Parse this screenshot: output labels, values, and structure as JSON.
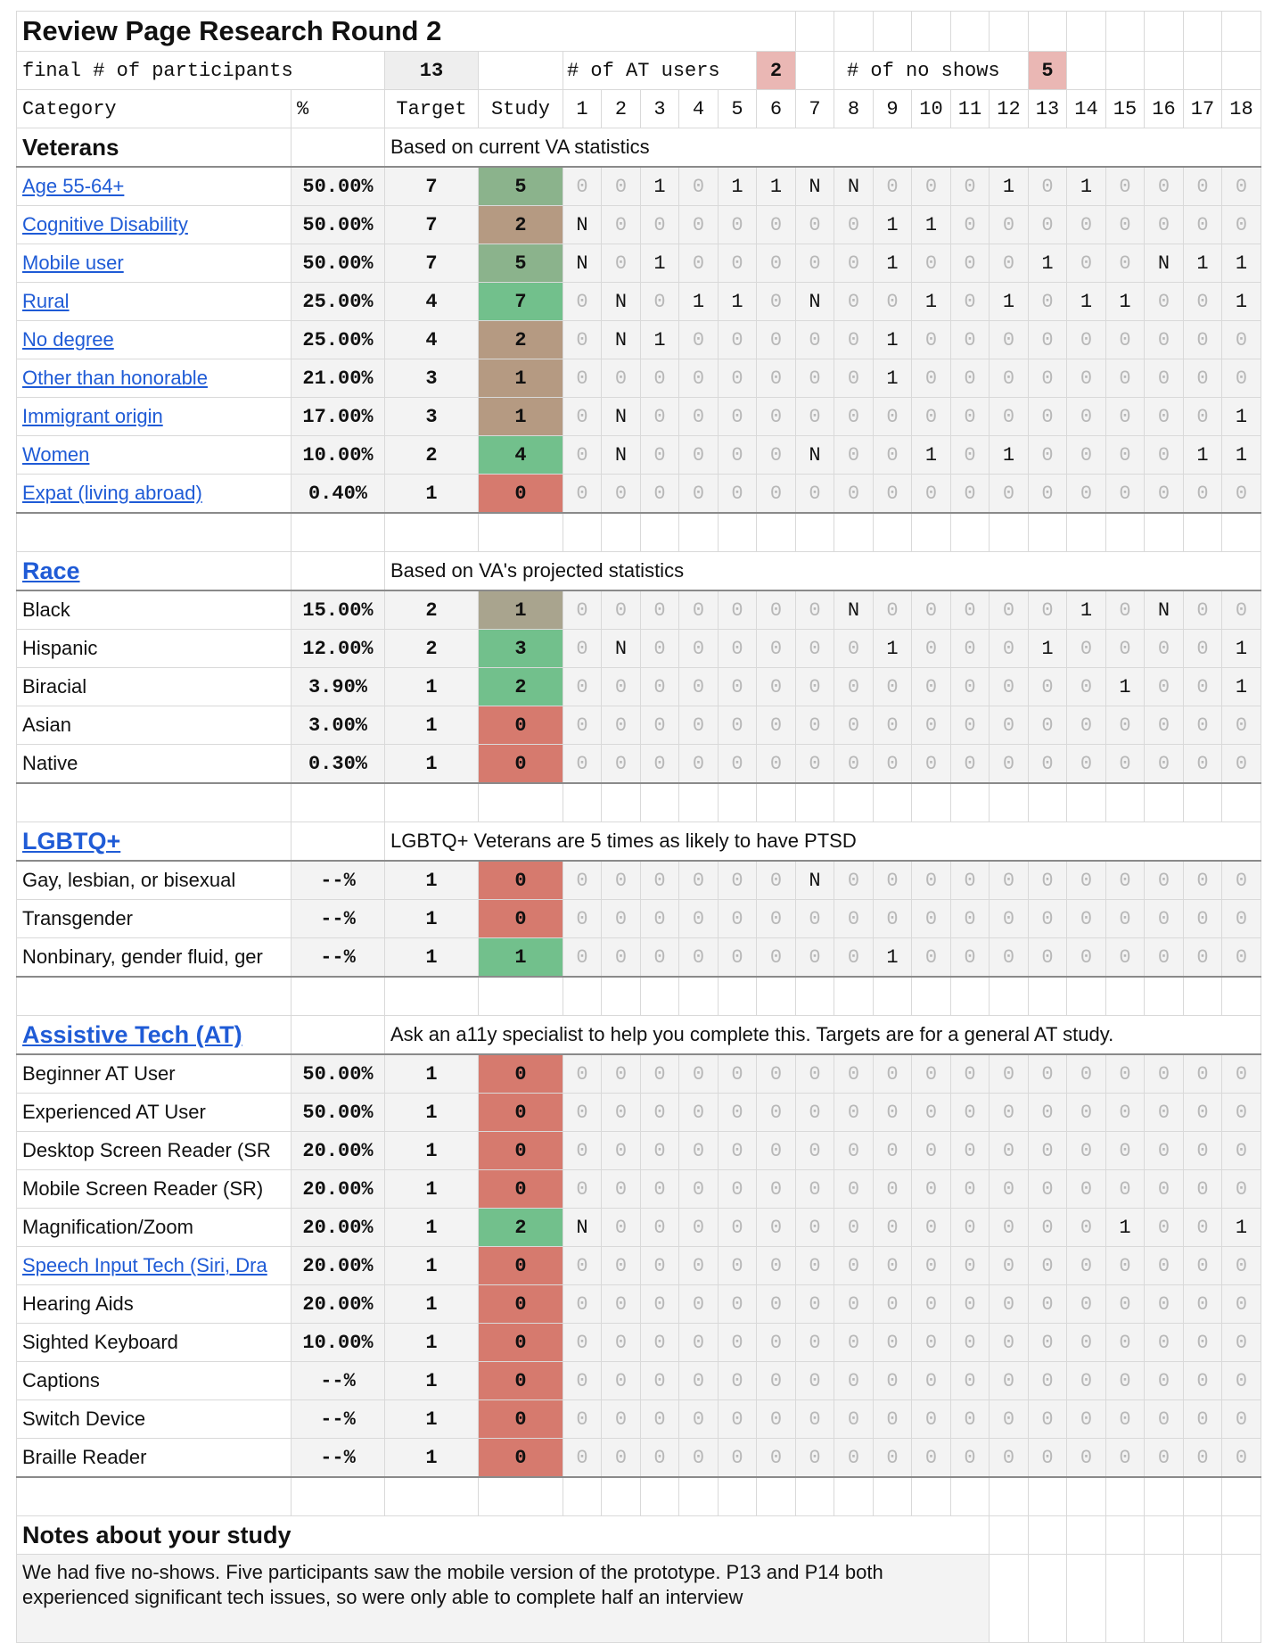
{
  "title": "Review Page Research Round 2",
  "summary": {
    "final_label": "final # of participants",
    "final_value": "13",
    "at_label": "# of AT users",
    "at_value": "2",
    "noshow_label": "# of no shows",
    "noshow_value": "5"
  },
  "headers": {
    "category": "Category",
    "pct": "%",
    "target": "Target",
    "study": "Study",
    "participants": [
      "1",
      "2",
      "3",
      "4",
      "5",
      "6",
      "7",
      "8",
      "9",
      "10",
      "11",
      "12",
      "13",
      "14",
      "15",
      "16",
      "17",
      "18"
    ]
  },
  "colors": {
    "red": "#d67a6e",
    "green": "#72c08c",
    "olive_green": "#8bb38c",
    "brown": "#b59a82",
    "khaki": "#a9a48e",
    "pink_badge": "#eab7b4",
    "link": "#1f5bd6"
  },
  "sections": [
    {
      "name": "Veterans",
      "is_link": false,
      "note": "Based on current VA statistics",
      "rows": [
        {
          "label": "Age 55-64+",
          "link": true,
          "pct": "50.00%",
          "target": "7",
          "study": "5",
          "color": "olive_green",
          "cells": [
            "0",
            "0",
            "1",
            "0",
            "1",
            "1",
            "N",
            "N",
            "0",
            "0",
            "0",
            "1",
            "0",
            "1",
            "0",
            "0",
            "0",
            "0"
          ]
        },
        {
          "label": "Cognitive Disability",
          "link": true,
          "pct": "50.00%",
          "target": "7",
          "study": "2",
          "color": "brown",
          "cells": [
            "N",
            "0",
            "0",
            "0",
            "0",
            "0",
            "0",
            "0",
            "1",
            "1",
            "0",
            "0",
            "0",
            "0",
            "0",
            "0",
            "0",
            "0"
          ]
        },
        {
          "label": "Mobile user",
          "link": true,
          "pct": "50.00%",
          "target": "7",
          "study": "5",
          "color": "olive_green",
          "cells": [
            "N",
            "0",
            "1",
            "0",
            "0",
            "0",
            "0",
            "0",
            "1",
            "0",
            "0",
            "0",
            "1",
            "0",
            "0",
            "N",
            "1",
            "1"
          ]
        },
        {
          "label": "Rural",
          "link": true,
          "pct": "25.00%",
          "target": "4",
          "study": "7",
          "color": "green",
          "cells": [
            "0",
            "N",
            "0",
            "1",
            "1",
            "0",
            "N",
            "0",
            "0",
            "1",
            "0",
            "1",
            "0",
            "1",
            "1",
            "0",
            "0",
            "1"
          ]
        },
        {
          "label": "No degree",
          "link": true,
          "pct": "25.00%",
          "target": "4",
          "study": "2",
          "color": "brown",
          "cells": [
            "0",
            "N",
            "1",
            "0",
            "0",
            "0",
            "0",
            "0",
            "1",
            "0",
            "0",
            "0",
            "0",
            "0",
            "0",
            "0",
            "0",
            "0"
          ]
        },
        {
          "label": "Other than honorable",
          "link": true,
          "pct": "21.00%",
          "target": "3",
          "study": "1",
          "color": "brown",
          "cells": [
            "0",
            "0",
            "0",
            "0",
            "0",
            "0",
            "0",
            "0",
            "1",
            "0",
            "0",
            "0",
            "0",
            "0",
            "0",
            "0",
            "0",
            "0"
          ]
        },
        {
          "label": "Immigrant origin",
          "link": true,
          "pct": "17.00%",
          "target": "3",
          "study": "1",
          "color": "brown",
          "cells": [
            "0",
            "N",
            "0",
            "0",
            "0",
            "0",
            "0",
            "0",
            "0",
            "0",
            "0",
            "0",
            "0",
            "0",
            "0",
            "0",
            "0",
            "1"
          ]
        },
        {
          "label": "Women",
          "link": true,
          "pct": "10.00%",
          "target": "2",
          "study": "4",
          "color": "green",
          "cells": [
            "0",
            "N",
            "0",
            "0",
            "0",
            "0",
            "N",
            "0",
            "0",
            "1",
            "0",
            "1",
            "0",
            "0",
            "0",
            "0",
            "1",
            "1"
          ]
        },
        {
          "label": "Expat (living abroad)",
          "link": true,
          "pct": "0.40%",
          "target": "1",
          "study": "0",
          "color": "red",
          "cells": [
            "0",
            "0",
            "0",
            "0",
            "0",
            "0",
            "0",
            "0",
            "0",
            "0",
            "0",
            "0",
            "0",
            "0",
            "0",
            "0",
            "0",
            "0"
          ]
        }
      ]
    },
    {
      "name": "Race",
      "is_link": true,
      "note": "Based on VA's projected statistics",
      "rows": [
        {
          "label": "Black",
          "link": false,
          "pct": "15.00%",
          "target": "2",
          "study": "1",
          "color": "khaki",
          "cells": [
            "0",
            "0",
            "0",
            "0",
            "0",
            "0",
            "0",
            "N",
            "0",
            "0",
            "0",
            "0",
            "0",
            "1",
            "0",
            "N",
            "0",
            "0"
          ]
        },
        {
          "label": "Hispanic",
          "link": false,
          "pct": "12.00%",
          "target": "2",
          "study": "3",
          "color": "green",
          "cells": [
            "0",
            "N",
            "0",
            "0",
            "0",
            "0",
            "0",
            "0",
            "1",
            "0",
            "0",
            "0",
            "1",
            "0",
            "0",
            "0",
            "0",
            "1"
          ]
        },
        {
          "label": "Biracial",
          "link": false,
          "pct": "3.90%",
          "target": "1",
          "study": "2",
          "color": "green",
          "cells": [
            "0",
            "0",
            "0",
            "0",
            "0",
            "0",
            "0",
            "0",
            "0",
            "0",
            "0",
            "0",
            "0",
            "0",
            "1",
            "0",
            "0",
            "1"
          ]
        },
        {
          "label": "Asian",
          "link": false,
          "pct": "3.00%",
          "target": "1",
          "study": "0",
          "color": "red",
          "cells": [
            "0",
            "0",
            "0",
            "0",
            "0",
            "0",
            "0",
            "0",
            "0",
            "0",
            "0",
            "0",
            "0",
            "0",
            "0",
            "0",
            "0",
            "0"
          ]
        },
        {
          "label": "Native",
          "link": false,
          "pct": "0.30%",
          "target": "1",
          "study": "0",
          "color": "red",
          "cells": [
            "0",
            "0",
            "0",
            "0",
            "0",
            "0",
            "0",
            "0",
            "0",
            "0",
            "0",
            "0",
            "0",
            "0",
            "0",
            "0",
            "0",
            "0"
          ]
        }
      ]
    },
    {
      "name": "LGBTQ+",
      "is_link": true,
      "note": "LGBTQ+ Veterans are 5 times as likely to have PTSD",
      "rows": [
        {
          "label": "Gay, lesbian, or bisexual",
          "link": false,
          "pct": "--%",
          "target": "1",
          "study": "0",
          "color": "red",
          "cells": [
            "0",
            "0",
            "0",
            "0",
            "0",
            "0",
            "N",
            "0",
            "0",
            "0",
            "0",
            "0",
            "0",
            "0",
            "0",
            "0",
            "0",
            "0"
          ]
        },
        {
          "label": "Transgender",
          "link": false,
          "pct": "--%",
          "target": "1",
          "study": "0",
          "color": "red",
          "cells": [
            "0",
            "0",
            "0",
            "0",
            "0",
            "0",
            "0",
            "0",
            "0",
            "0",
            "0",
            "0",
            "0",
            "0",
            "0",
            "0",
            "0",
            "0"
          ]
        },
        {
          "label": "Nonbinary, gender fluid, ger",
          "link": false,
          "pct": "--%",
          "target": "1",
          "study": "1",
          "color": "green",
          "cells": [
            "0",
            "0",
            "0",
            "0",
            "0",
            "0",
            "0",
            "0",
            "1",
            "0",
            "0",
            "0",
            "0",
            "0",
            "0",
            "0",
            "0",
            "0"
          ]
        }
      ]
    },
    {
      "name": "Assistive Tech (AT)",
      "is_link": true,
      "note": "Ask an a11y specialist to help you complete this. Targets are for a general AT study.",
      "rows": [
        {
          "label": "Beginner AT User",
          "link": false,
          "pct": "50.00%",
          "target": "1",
          "study": "0",
          "color": "red",
          "cells": [
            "0",
            "0",
            "0",
            "0",
            "0",
            "0",
            "0",
            "0",
            "0",
            "0",
            "0",
            "0",
            "0",
            "0",
            "0",
            "0",
            "0",
            "0"
          ]
        },
        {
          "label": "Experienced AT User",
          "link": false,
          "pct": "50.00%",
          "target": "1",
          "study": "0",
          "color": "red",
          "cells": [
            "0",
            "0",
            "0",
            "0",
            "0",
            "0",
            "0",
            "0",
            "0",
            "0",
            "0",
            "0",
            "0",
            "0",
            "0",
            "0",
            "0",
            "0"
          ]
        },
        {
          "label": "Desktop Screen Reader (SR",
          "link": false,
          "pct": "20.00%",
          "target": "1",
          "study": "0",
          "color": "red",
          "cells": [
            "0",
            "0",
            "0",
            "0",
            "0",
            "0",
            "0",
            "0",
            "0",
            "0",
            "0",
            "0",
            "0",
            "0",
            "0",
            "0",
            "0",
            "0"
          ]
        },
        {
          "label": "Mobile Screen Reader (SR)",
          "link": false,
          "pct": "20.00%",
          "target": "1",
          "study": "0",
          "color": "red",
          "cells": [
            "0",
            "0",
            "0",
            "0",
            "0",
            "0",
            "0",
            "0",
            "0",
            "0",
            "0",
            "0",
            "0",
            "0",
            "0",
            "0",
            "0",
            "0"
          ]
        },
        {
          "label": "Magnification/Zoom",
          "link": false,
          "pct": "20.00%",
          "target": "1",
          "study": "2",
          "color": "green",
          "cells": [
            "N",
            "0",
            "0",
            "0",
            "0",
            "0",
            "0",
            "0",
            "0",
            "0",
            "0",
            "0",
            "0",
            "0",
            "1",
            "0",
            "0",
            "1"
          ]
        },
        {
          "label": "Speech Input Tech (Siri, Dra",
          "link": true,
          "pct": "20.00%",
          "target": "1",
          "study": "0",
          "color": "red",
          "cells": [
            "0",
            "0",
            "0",
            "0",
            "0",
            "0",
            "0",
            "0",
            "0",
            "0",
            "0",
            "0",
            "0",
            "0",
            "0",
            "0",
            "0",
            "0"
          ]
        },
        {
          "label": "Hearing Aids",
          "link": false,
          "pct": "20.00%",
          "target": "1",
          "study": "0",
          "color": "red",
          "cells": [
            "0",
            "0",
            "0",
            "0",
            "0",
            "0",
            "0",
            "0",
            "0",
            "0",
            "0",
            "0",
            "0",
            "0",
            "0",
            "0",
            "0",
            "0"
          ]
        },
        {
          "label": "Sighted Keyboard",
          "link": false,
          "pct": "10.00%",
          "target": "1",
          "study": "0",
          "color": "red",
          "cells": [
            "0",
            "0",
            "0",
            "0",
            "0",
            "0",
            "0",
            "0",
            "0",
            "0",
            "0",
            "0",
            "0",
            "0",
            "0",
            "0",
            "0",
            "0"
          ]
        },
        {
          "label": "Captions",
          "link": false,
          "pct": "--%",
          "target": "1",
          "study": "0",
          "color": "red",
          "cells": [
            "0",
            "0",
            "0",
            "0",
            "0",
            "0",
            "0",
            "0",
            "0",
            "0",
            "0",
            "0",
            "0",
            "0",
            "0",
            "0",
            "0",
            "0"
          ]
        },
        {
          "label": "Switch Device",
          "link": false,
          "pct": "--%",
          "target": "1",
          "study": "0",
          "color": "red",
          "cells": [
            "0",
            "0",
            "0",
            "0",
            "0",
            "0",
            "0",
            "0",
            "0",
            "0",
            "0",
            "0",
            "0",
            "0",
            "0",
            "0",
            "0",
            "0"
          ]
        },
        {
          "label": "Braille Reader",
          "link": false,
          "pct": "--%",
          "target": "1",
          "study": "0",
          "color": "red",
          "cells": [
            "0",
            "0",
            "0",
            "0",
            "0",
            "0",
            "0",
            "0",
            "0",
            "0",
            "0",
            "0",
            "0",
            "0",
            "0",
            "0",
            "0",
            "0"
          ]
        }
      ]
    }
  ],
  "notes": {
    "title": "Notes about your study",
    "body": "We had five no-shows. Five participants saw the mobile version of the prototype. P13 and P14 both experienced significant tech issues, so were only able to complete half an interview"
  }
}
